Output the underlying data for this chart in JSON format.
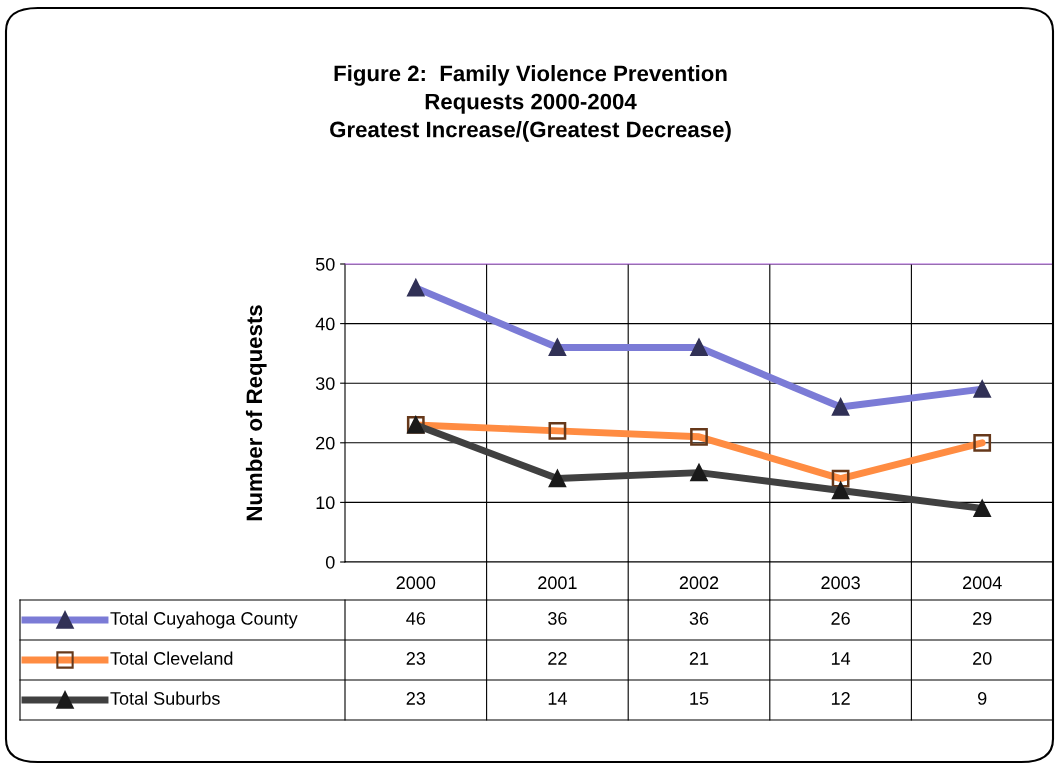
{
  "chart_data": {
    "type": "line",
    "title": "Figure 2:  Family Violence Prevention\nRequests 2000-2004\nGreatest Increase/(Greatest Decrease)",
    "ylabel": "Number of Requests",
    "categories": [
      "2000",
      "2001",
      "2002",
      "2003",
      "2004"
    ],
    "series": [
      {
        "name": "Total Cuyahoga County",
        "color": "#7b7bd6",
        "marker": "triangle",
        "values": [
          46,
          36,
          36,
          26,
          29
        ]
      },
      {
        "name": "Total Cleveland",
        "color": "#ff8c42",
        "marker": "square",
        "values": [
          23,
          22,
          21,
          14,
          20
        ]
      },
      {
        "name": "Total Suburbs",
        "color": "#404040",
        "marker": "triangle",
        "values": [
          23,
          14,
          15,
          12,
          9
        ]
      }
    ],
    "ylim": [
      0,
      50
    ],
    "yticks": [
      0,
      10,
      20,
      30,
      40,
      50
    ],
    "grid": true,
    "legend": "bottom",
    "data_labels": true
  }
}
